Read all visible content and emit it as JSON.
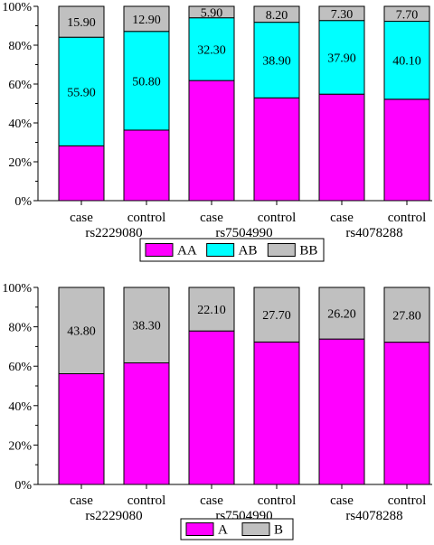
{
  "chart_data": [
    {
      "type": "bar",
      "stacked": true,
      "percent": true,
      "categories": [
        "case",
        "control",
        "case",
        "control",
        "case",
        "control"
      ],
      "groups": [
        {
          "label": "rs2229080",
          "categories": [
            0,
            1
          ]
        },
        {
          "label": "rs7504990",
          "categories": [
            2,
            3
          ]
        },
        {
          "label": "rs4078288",
          "categories": [
            4,
            5
          ]
        }
      ],
      "series": [
        {
          "name": "AA",
          "color": "#ff00ff",
          "values": [
            28.2,
            36.3,
            61.8,
            52.9,
            54.8,
            52.2
          ]
        },
        {
          "name": "AB",
          "color": "#00ffff",
          "values": [
            55.9,
            50.8,
            32.3,
            38.9,
            37.9,
            40.1
          ],
          "labels": [
            "55.90",
            "50.80",
            "32.30",
            "38.90",
            "37.90",
            "40.10"
          ]
        },
        {
          "name": "BB",
          "color": "#c0c0c0",
          "values": [
            15.9,
            12.9,
            5.9,
            8.2,
            7.3,
            7.7
          ],
          "labels": [
            "15.90",
            "12.90",
            "5.90",
            "8.20",
            "7.30",
            "7.70"
          ]
        }
      ],
      "yticks": [
        "0%",
        "20%",
        "40%",
        "60%",
        "80%",
        "100%"
      ],
      "ylim": [
        0,
        100
      ],
      "legend": "bottom-center"
    },
    {
      "type": "bar",
      "stacked": true,
      "percent": true,
      "categories": [
        "case",
        "control",
        "case",
        "control",
        "case",
        "control"
      ],
      "groups": [
        {
          "label": "rs2229080",
          "categories": [
            0,
            1
          ]
        },
        {
          "label": "rs7504990",
          "categories": [
            2,
            3
          ]
        },
        {
          "label": "rs4078288",
          "categories": [
            4,
            5
          ]
        }
      ],
      "series": [
        {
          "name": "A",
          "color": "#ff00ff",
          "values": [
            56.2,
            61.7,
            77.9,
            72.3,
            73.8,
            72.2
          ]
        },
        {
          "name": "B",
          "color": "#c0c0c0",
          "values": [
            43.8,
            38.3,
            22.1,
            27.7,
            26.2,
            27.8
          ],
          "labels": [
            "43.80",
            "38.30",
            "22.10",
            "27.70",
            "26.20",
            "27.80"
          ]
        }
      ],
      "yticks": [
        "0%",
        "20%",
        "40%",
        "60%",
        "80%",
        "100%"
      ],
      "ylim": [
        0,
        100
      ],
      "legend": "bottom-center"
    }
  ]
}
